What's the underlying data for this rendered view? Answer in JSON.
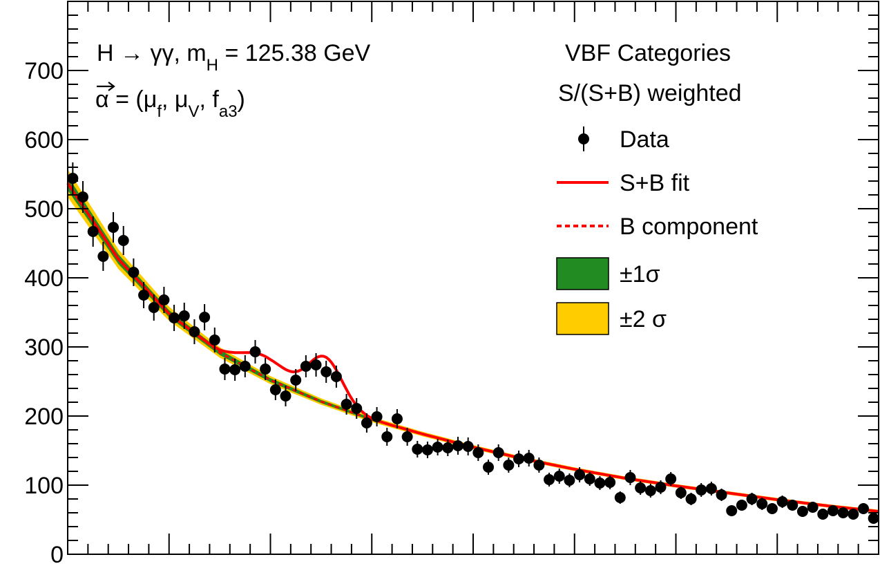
{
  "chart_data": {
    "type": "scatter",
    "title": "",
    "xlabel": "",
    "ylabel": "",
    "xlim": [
      100,
      180
    ],
    "ylim": [
      0,
      800
    ],
    "y_ticks": [
      0,
      100,
      200,
      300,
      400,
      500,
      600,
      700
    ],
    "y_tick_labels": [
      "0",
      "100",
      "200",
      "300",
      "400",
      "500",
      "600",
      "700"
    ],
    "annotations": {
      "process": "H → γγ, m",
      "process_sub": "H",
      "mass_value": " = 125.38 GeV",
      "alpha_symbol": "α",
      "alpha_eq": " = (μ",
      "mu_f_sub": "f",
      "mu_v_pre": ", μ",
      "mu_v_sub": "V",
      "fa3_pre": ", f",
      "fa3_sub": "a3",
      "close": ")"
    },
    "legend_header": [
      "VBF Categories",
      "S/(S+B) weighted"
    ],
    "legend": {
      "data": "Data",
      "fit": "S+B fit",
      "bkg": "B component",
      "band1": "±1σ",
      "band2": "±2 σ"
    },
    "colors": {
      "fit": "#ff0000",
      "bkg": "#ff0000",
      "band1": "#228b22",
      "band2": "#ffcc00",
      "data": "#000000"
    },
    "data": {
      "x": [
        100.5,
        101.5,
        102.5,
        103.5,
        104.5,
        105.5,
        106.5,
        107.5,
        108.5,
        109.5,
        110.5,
        111.5,
        112.5,
        113.5,
        114.5,
        115.5,
        116.5,
        117.5,
        118.5,
        119.5,
        120.5,
        121.5,
        122.5,
        123.5,
        124.5,
        125.5,
        126.5,
        127.5,
        128.5,
        129.5,
        130.5,
        131.5,
        132.5,
        133.5,
        134.5,
        135.5,
        136.5,
        137.5,
        138.5,
        139.5,
        140.5,
        141.5,
        142.5,
        143.5,
        144.5,
        145.5,
        146.5,
        147.5,
        148.5,
        149.5,
        150.5,
        151.5,
        152.5,
        153.5,
        154.5,
        155.5,
        156.5,
        157.5,
        158.5,
        159.5,
        160.5,
        161.5,
        162.5,
        163.5,
        164.5,
        165.5,
        166.5,
        167.5,
        168.5,
        169.5,
        170.5,
        171.5,
        172.5,
        173.5,
        174.5,
        175.5,
        176.5,
        177.5,
        178.5,
        179.5
      ],
      "y": [
        544,
        517,
        467,
        431,
        473,
        454,
        408,
        375,
        357,
        368,
        342,
        345,
        322,
        343,
        310,
        268,
        267,
        272,
        293,
        268,
        238,
        229,
        252,
        272,
        274,
        264,
        257,
        217,
        211,
        190,
        199,
        170,
        196,
        170,
        152,
        151,
        155,
        154,
        157,
        156,
        147,
        126,
        147,
        129,
        138,
        139,
        129,
        108,
        113,
        107,
        115,
        109,
        103,
        104,
        82,
        111,
        96,
        92,
        97,
        109,
        89,
        80,
        93,
        95,
        86,
        63,
        71,
        80,
        73,
        66,
        76,
        71,
        62,
        68,
        58,
        63,
        60,
        58,
        66,
        52
      ],
      "err": [
        23,
        23,
        22,
        21,
        22,
        21,
        20,
        19,
        19,
        19,
        19,
        19,
        18,
        19,
        18,
        16,
        16,
        16,
        17,
        16,
        15,
        15,
        16,
        16,
        17,
        16,
        16,
        15,
        15,
        14,
        14,
        13,
        14,
        13,
        12,
        12,
        12,
        12,
        13,
        13,
        12,
        11,
        12,
        11,
        12,
        12,
        11,
        10,
        11,
        10,
        11,
        10,
        10,
        10,
        9,
        11,
        10,
        10,
        10,
        10,
        9,
        9,
        10,
        10,
        9,
        8,
        8,
        9,
        9,
        8,
        9,
        8,
        8,
        8,
        8,
        8,
        8,
        8,
        8,
        7
      ]
    },
    "background_model": {
      "x": [
        100,
        105,
        110,
        115,
        120,
        125,
        130,
        135,
        140,
        145,
        150,
        155,
        160,
        165,
        170,
        175,
        180
      ],
      "y": [
        537,
        427,
        348,
        292,
        252,
        221,
        195,
        174,
        155,
        138,
        123,
        110,
        99,
        89,
        79,
        70,
        62
      ]
    },
    "signal_peak": {
      "mean": 125.38,
      "sigma": 1.7,
      "amplitude": 66,
      "step_center": 119.5,
      "step_height": 30
    }
  }
}
